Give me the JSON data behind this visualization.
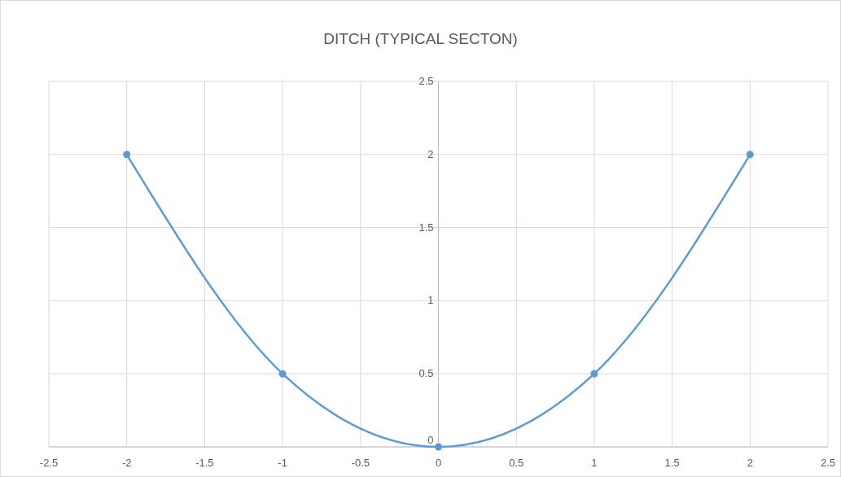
{
  "chart_data": {
    "type": "line",
    "title": "DITCH (TYPICAL SECTON)",
    "x": [
      -2,
      -1,
      0,
      1,
      2
    ],
    "series": [
      {
        "color": "#5b9bd5",
        "values": [
          2,
          0.5,
          0,
          0.5,
          2
        ]
      }
    ],
    "xlim": [
      -2.5,
      2.5
    ],
    "xticks": [
      -2.5,
      -2,
      -1.5,
      -1,
      -0.5,
      0,
      0.5,
      1,
      1.5,
      2,
      2.5
    ],
    "ylim": [
      0,
      2.5
    ],
    "yticks": [
      0,
      0.5,
      1,
      1.5,
      2,
      2.5
    ],
    "grid": true,
    "marker": "circle",
    "line_style": "solid"
  }
}
